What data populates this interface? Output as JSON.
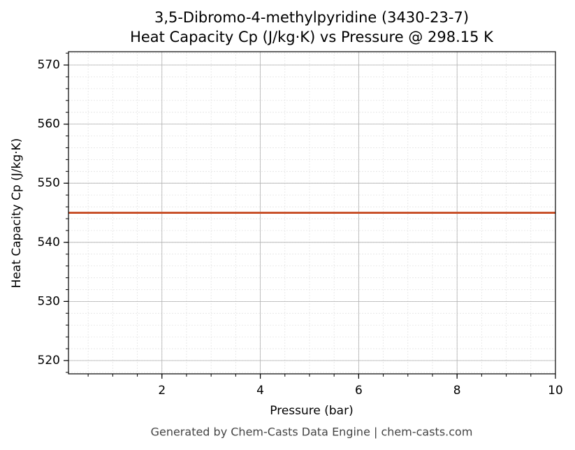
{
  "chart_data": {
    "type": "line",
    "title": "3,5-Dibromo-4-methylpyridine (3430-23-7)",
    "subtitle": "Heat Capacity Cp (J/kg·K) vs Pressure @ 298.15 K",
    "x_label": "Pressure (bar)",
    "y_label": "Heat Capacity Cp (J/kg·K)",
    "footer": "Generated by Chem-Casts Data Engine | chem-casts.com",
    "x": [
      0.1,
      10
    ],
    "series": [
      {
        "name": "Heat Capacity Cp",
        "color": "#c8522b",
        "values": [
          545,
          545
        ]
      }
    ],
    "xlim": [
      0.1,
      10
    ],
    "xticks": [
      2,
      4,
      6,
      8,
      10
    ],
    "ylim": [
      517.75,
      572.25
    ],
    "yticks": [
      520,
      530,
      540,
      550,
      560,
      570
    ],
    "x_minor_step": 0.5,
    "y_minor_step": 2,
    "grid": true
  }
}
